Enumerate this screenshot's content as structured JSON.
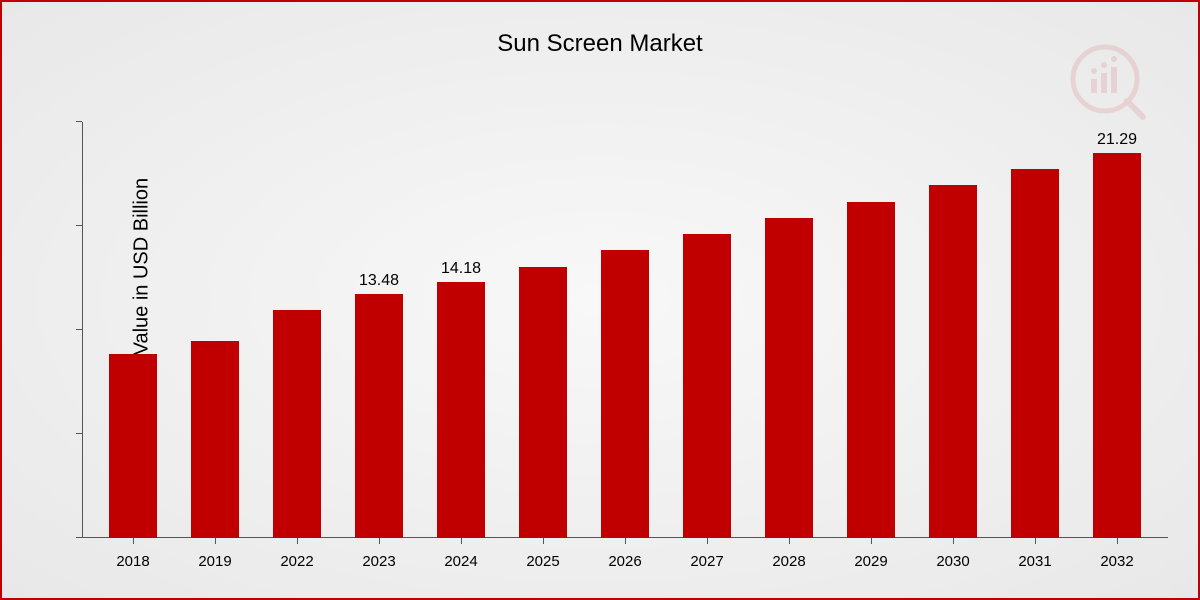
{
  "chart": {
    "type": "bar",
    "title": "Sun Screen Market",
    "ylabel": "Market Value in USD Billion",
    "categories": [
      "2018",
      "2019",
      "2022",
      "2023",
      "2024",
      "2025",
      "2026",
      "2027",
      "2028",
      "2029",
      "2030",
      "2031",
      "2032"
    ],
    "values": [
      10.2,
      10.9,
      12.6,
      13.48,
      14.18,
      15.0,
      15.9,
      16.8,
      17.7,
      18.6,
      19.5,
      20.4,
      21.29
    ],
    "shown_value_labels": {
      "2023": "13.48",
      "2024": "14.18",
      "2032": "21.29"
    },
    "bar_color": "#c00000",
    "border_color": "#c00000",
    "background_gradient": [
      "#f8f8f8",
      "#e8e8e8"
    ],
    "ylim": [
      0,
      23
    ],
    "title_fontsize": 24,
    "ylabel_fontsize": 20,
    "xlabel_fontsize": 15,
    "value_label_fontsize": 16,
    "bar_width_ratio": 0.58,
    "axis_color": "#555555",
    "text_color": "#000000",
    "logo_opacity": 0.1
  }
}
